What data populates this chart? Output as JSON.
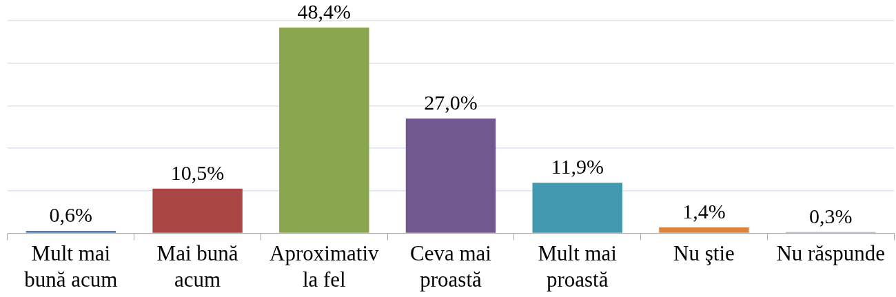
{
  "chart_data": {
    "type": "bar",
    "categories": [
      "Mult mai bună acum",
      "Mai bună acum",
      "Aproximativ la fel",
      "Ceva mai proastă",
      "Mult mai proastă",
      "Nu ştie",
      "Nu răspunde"
    ],
    "values": [
      0.6,
      10.5,
      48.4,
      27.0,
      11.9,
      1.4,
      0.3
    ],
    "colors": [
      "#4a7ebb",
      "#aa4643",
      "#89a54e",
      "#71588f",
      "#4198af",
      "#db843d",
      "#93a9cf"
    ],
    "value_labels": [
      "0,6%",
      "10,5%",
      "48,4%",
      "27,0%",
      "11,9%",
      "1,4%",
      "0,3%"
    ],
    "ylim": [
      0,
      50
    ],
    "yticks": [
      {
        "value": 0,
        "label": null
      },
      {
        "value": 10,
        "label": null
      },
      {
        "value": 20,
        "label": null
      },
      {
        "value": 30,
        "label": null
      },
      {
        "value": 40,
        "label": null
      },
      {
        "value": 50,
        "label": null
      }
    ],
    "grid": "y",
    "tick_labels": "x"
  }
}
